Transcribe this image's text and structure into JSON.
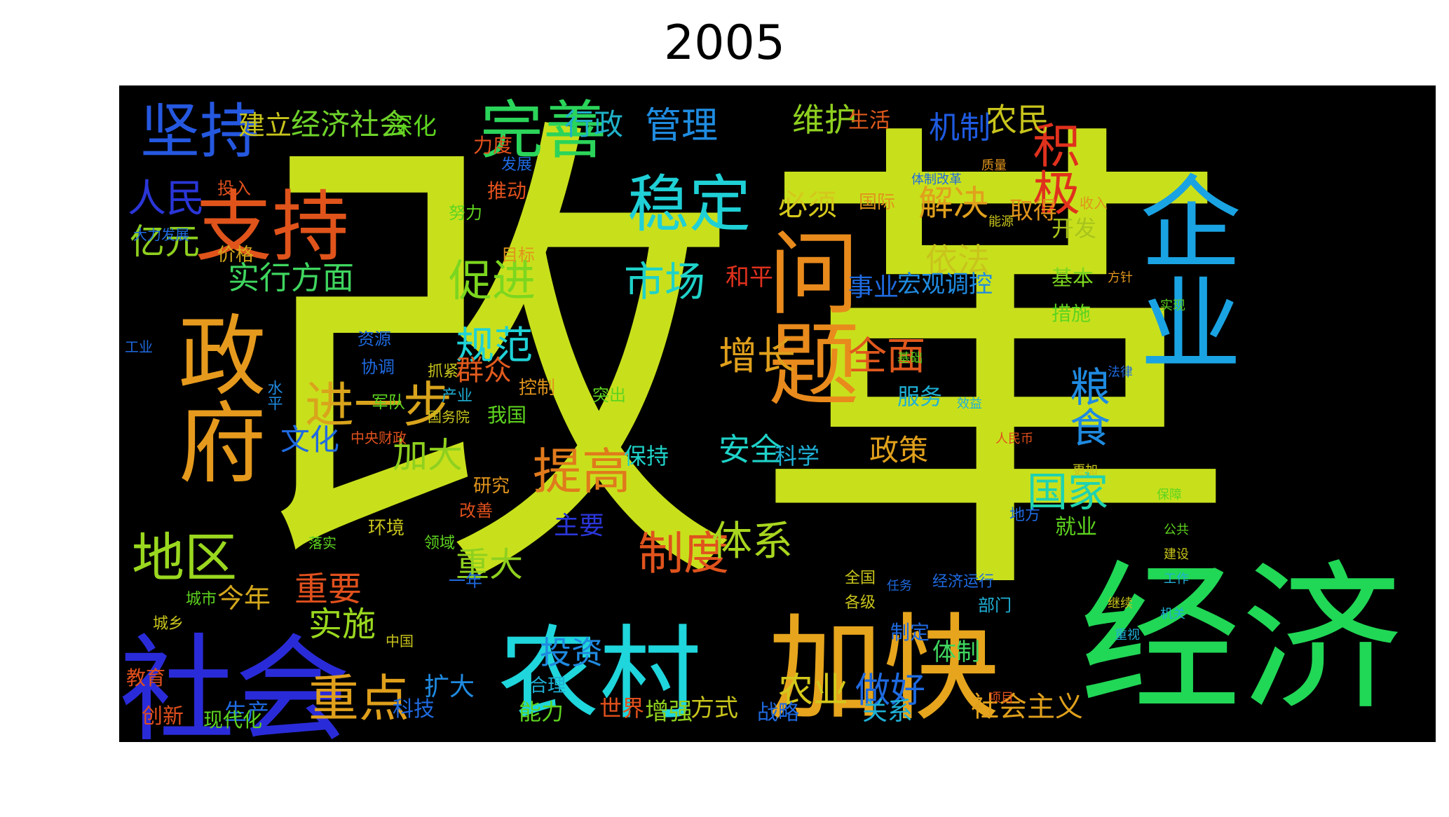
{
  "title": "2005",
  "background_color": "#000000",
  "words": [
    {
      "text": "改",
      "color": "#c8e01c"
    },
    {
      "text": "革",
      "color": "#c8e01c"
    },
    {
      "text": "经济",
      "color": "#21d756"
    },
    {
      "text": "加快",
      "color": "#e6a51d"
    },
    {
      "text": "农村",
      "color": "#1fd6dc"
    },
    {
      "text": "社会",
      "color": "#2a2bd8"
    },
    {
      "text": "企业",
      "color": "#1aa3e2"
    },
    {
      "text": "问题",
      "color": "#e88a1c"
    },
    {
      "text": "政府",
      "color": "#e59a1d"
    },
    {
      "text": "支持",
      "color": "#e0541b"
    },
    {
      "text": "完善",
      "color": "#2bd45a"
    },
    {
      "text": "坚持",
      "color": "#2558e0"
    },
    {
      "text": "稳定",
      "color": "#1fd0d6"
    },
    {
      "text": "地区",
      "color": "#9ad81f"
    },
    {
      "text": "进一步",
      "color": "#d9a41c"
    },
    {
      "text": "提高",
      "color": "#e07a1c"
    },
    {
      "text": "制度",
      "color": "#e0531d"
    },
    {
      "text": "重点",
      "color": "#e0a01c"
    },
    {
      "text": "积极",
      "color": "#e0311d"
    },
    {
      "text": "粮食",
      "color": "#1f8ae0"
    },
    {
      "text": "国家",
      "color": "#1fd2b0"
    },
    {
      "text": "促进",
      "color": "#7cd61f"
    },
    {
      "text": "市场",
      "color": "#1fd2c8"
    },
    {
      "text": "规范",
      "color": "#1fd2d6"
    },
    {
      "text": "体系",
      "color": "#a8d61f"
    },
    {
      "text": "人民",
      "color": "#2a36d8"
    },
    {
      "text": "亿元",
      "color": "#8fd01f"
    },
    {
      "text": "实行方面",
      "color": "#3fd65f"
    },
    {
      "text": "管理",
      "color": "#1f8ce0"
    },
    {
      "text": "行政",
      "color": "#1fb0c8"
    },
    {
      "text": "经济社会",
      "color": "#6fd22a"
    },
    {
      "text": "深化",
      "color": "#5ed41f"
    },
    {
      "text": "建立",
      "color": "#c8c41c"
    },
    {
      "text": "维护",
      "color": "#8fd01f"
    },
    {
      "text": "农民",
      "color": "#c8c41c"
    },
    {
      "text": "机制",
      "color": "#1f5ae0"
    },
    {
      "text": "生活",
      "color": "#e05a1d"
    },
    {
      "text": "解决",
      "color": "#e0a01c"
    },
    {
      "text": "必须",
      "color": "#d4c81c"
    },
    {
      "text": "依法",
      "color": "#c8c41c"
    },
    {
      "text": "取得",
      "color": "#e0941c"
    },
    {
      "text": "开发",
      "color": "#a8c41c"
    },
    {
      "text": "增长",
      "color": "#e0a01c"
    },
    {
      "text": "全面",
      "color": "#e0581d"
    },
    {
      "text": "安全",
      "color": "#1fd2c8"
    },
    {
      "text": "政策",
      "color": "#e0a01c"
    },
    {
      "text": "科学",
      "color": "#1fb0d6"
    },
    {
      "text": "加大",
      "color": "#8fd01f"
    },
    {
      "text": "文化",
      "color": "#1f6ae0"
    },
    {
      "text": "实施",
      "color": "#9ad81f"
    },
    {
      "text": "重要",
      "color": "#e0501d"
    },
    {
      "text": "重大",
      "color": "#8fd01f"
    },
    {
      "text": "投资",
      "color": "#1f8ae0"
    },
    {
      "text": "农业",
      "color": "#d4c81c"
    },
    {
      "text": "做好",
      "color": "#1f6ae0"
    },
    {
      "text": "社会主义",
      "color": "#e0a01c"
    },
    {
      "text": "群众",
      "color": "#e05a1d"
    },
    {
      "text": "今年",
      "color": "#d4a81c"
    },
    {
      "text": "主要",
      "color": "#2a36d8"
    },
    {
      "text": "事业",
      "color": "#1f6ae0"
    },
    {
      "text": "宏观调控",
      "color": "#1f8ae0"
    },
    {
      "text": "和平",
      "color": "#e0311d"
    },
    {
      "text": "基本",
      "color": "#7cd61f"
    },
    {
      "text": "措施",
      "color": "#5ed41f"
    },
    {
      "text": "就业",
      "color": "#5ed41f"
    },
    {
      "text": "服务",
      "color": "#1fb0d6"
    },
    {
      "text": "保持",
      "color": "#1fd2c8"
    },
    {
      "text": "扩大",
      "color": "#1f8ae0"
    },
    {
      "text": "科技",
      "color": "#1f6ae0"
    },
    {
      "text": "能力",
      "color": "#5ed41f"
    },
    {
      "text": "方式",
      "color": "#c8c41c"
    },
    {
      "text": "世界",
      "color": "#e0501d"
    },
    {
      "text": "增强",
      "color": "#8fd01f"
    },
    {
      "text": "战略",
      "color": "#1f6ae0"
    },
    {
      "text": "关系",
      "color": "#1fb0d6"
    },
    {
      "text": "体制",
      "color": "#3fd65f"
    },
    {
      "text": "生产",
      "color": "#1f6ae0"
    },
    {
      "text": "创新",
      "color": "#e0501d"
    },
    {
      "text": "现代化",
      "color": "#5ed41f"
    },
    {
      "text": "教育",
      "color": "#e0501d"
    },
    {
      "text": "力度",
      "color": "#e0501d"
    },
    {
      "text": "推动",
      "color": "#e0501d"
    },
    {
      "text": "努力",
      "color": "#5ed41f"
    },
    {
      "text": "价格",
      "color": "#d4a81c"
    },
    {
      "text": "投入",
      "color": "#e0501d"
    },
    {
      "text": "国际",
      "color": "#e0941c"
    },
    {
      "text": "目标",
      "color": "#e0941c"
    },
    {
      "text": "我国",
      "color": "#5ed41f"
    },
    {
      "text": "控制",
      "color": "#e0941c"
    },
    {
      "text": "突出",
      "color": "#5ed41f"
    },
    {
      "text": "研究",
      "color": "#e0941c"
    },
    {
      "text": "改善",
      "color": "#e0501d"
    },
    {
      "text": "环境",
      "color": "#c8c41c"
    },
    {
      "text": "一年",
      "color": "#1f6ae0"
    },
    {
      "text": "合理",
      "color": "#1fb0d6"
    },
    {
      "text": "领域",
      "color": "#5ed41f"
    },
    {
      "text": "地方",
      "color": "#1f6ae0"
    },
    {
      "text": "各级",
      "color": "#c8c41c"
    },
    {
      "text": "部门",
      "color": "#1fb0d6"
    },
    {
      "text": "制定",
      "color": "#1f6ae0"
    },
    {
      "text": "工业",
      "color": "#1f6ae0"
    },
    {
      "text": "资源",
      "color": "#1f6ae0"
    },
    {
      "text": "协调",
      "color": "#1f6ae0"
    },
    {
      "text": "军队",
      "color": "#5ed41f"
    },
    {
      "text": "抓紧",
      "color": "#c8c41c"
    },
    {
      "text": "产业",
      "color": "#1fb0d6"
    },
    {
      "text": "城乡",
      "color": "#c8c41c"
    },
    {
      "text": "城市",
      "color": "#5ed41f"
    },
    {
      "text": "中国",
      "color": "#c8c41c"
    },
    {
      "text": "国务院",
      "color": "#c8c41c"
    },
    {
      "text": "中央财政",
      "color": "#e0501d"
    },
    {
      "text": "全国",
      "color": "#c8c41c"
    },
    {
      "text": "收入",
      "color": "#e0941c"
    },
    {
      "text": "经济运行",
      "color": "#1f6ae0"
    },
    {
      "text": "发展",
      "color": "#1f6ae0"
    },
    {
      "text": "大力发展",
      "color": "#1f6ae0"
    },
    {
      "text": "落实",
      "color": "#5ed41f"
    },
    {
      "text": "项目",
      "color": "#e0501d"
    },
    {
      "text": "任务",
      "color": "#1f6ae0"
    },
    {
      "text": "公共",
      "color": "#5ed41f"
    },
    {
      "text": "建设",
      "color": "#c8c41c"
    },
    {
      "text": "工作",
      "color": "#1fb0d6"
    },
    {
      "text": "水平",
      "color": "#1f8ae0"
    },
    {
      "text": "人民币",
      "color": "#e0501d"
    },
    {
      "text": "保障",
      "color": "#5ed41f"
    },
    {
      "text": "更加",
      "color": "#c8c41c"
    },
    {
      "text": "机关",
      "color": "#1fb0d6"
    },
    {
      "text": "方针",
      "color": "#e0941c"
    },
    {
      "text": "实现",
      "color": "#5ed41f"
    },
    {
      "text": "继续",
      "color": "#c8c41c"
    },
    {
      "text": "重视",
      "color": "#1fb0d6"
    },
    {
      "text": "体制改革",
      "color": "#1f6ae0"
    },
    {
      "text": "基础",
      "color": "#5ed41f"
    },
    {
      "text": "法律",
      "color": "#1f6ae0"
    },
    {
      "text": "质量",
      "color": "#e0941c"
    },
    {
      "text": "能源",
      "color": "#c8c41c"
    },
    {
      "text": "效益",
      "color": "#1fb0d6"
    }
  ]
}
